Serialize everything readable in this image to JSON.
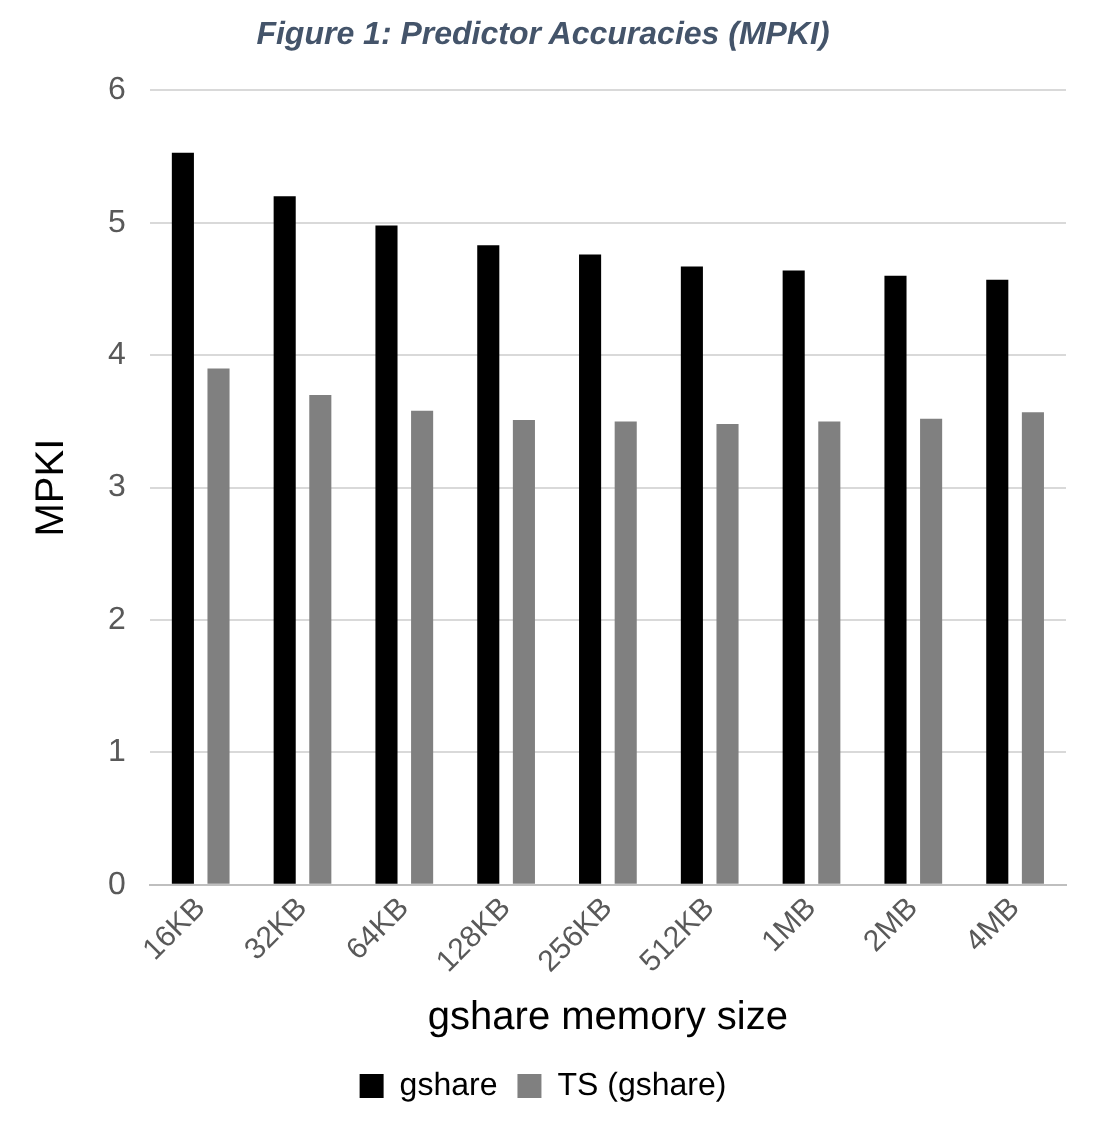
{
  "chart_data": {
    "type": "bar",
    "title": "Figure 1: Predictor Accuracies (MPKI)",
    "xlabel": "gshare memory size",
    "ylabel": "MPKI",
    "categories": [
      "16KB",
      "32KB",
      "64KB",
      "128KB",
      "256KB",
      "512KB",
      "1MB",
      "2MB",
      "4MB"
    ],
    "series": [
      {
        "name": "gshare",
        "color": "#000000",
        "values": [
          5.53,
          5.2,
          4.98,
          4.83,
          4.76,
          4.67,
          4.64,
          4.6,
          4.57
        ]
      },
      {
        "name": "TS (gshare)",
        "color": "#808080",
        "values": [
          3.9,
          3.7,
          3.58,
          3.51,
          3.5,
          3.48,
          3.5,
          3.52,
          3.57
        ]
      }
    ],
    "ylim": [
      0,
      6
    ],
    "yticks": [
      0,
      1,
      2,
      3,
      4,
      5,
      6
    ],
    "grid": "y",
    "legend": "bottom"
  }
}
